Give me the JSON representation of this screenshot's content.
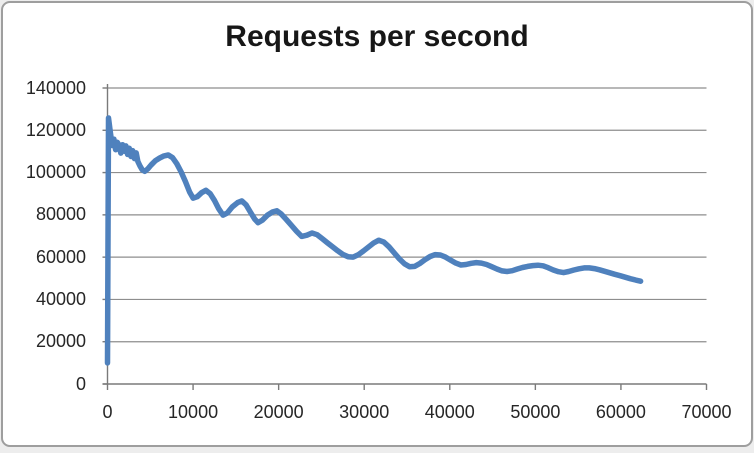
{
  "page": {
    "background": "#ededed",
    "card_background": "#ffffff",
    "card_border_color": "#9e9e9e"
  },
  "chart_data": {
    "type": "line",
    "title": "Requests per second",
    "title_color": "#171717",
    "xlabel": "",
    "ylabel": "",
    "xlim": [
      0,
      70000
    ],
    "ylim": [
      0,
      140000
    ],
    "x_ticks": [
      0,
      10000,
      20000,
      30000,
      40000,
      50000,
      60000,
      70000
    ],
    "x_tick_labels": [
      "0",
      "10000",
      "20000",
      "30000",
      "40000",
      "50000",
      "60000",
      "70000"
    ],
    "y_ticks": [
      0,
      20000,
      40000,
      60000,
      80000,
      100000,
      120000,
      140000
    ],
    "y_tick_labels": [
      "0",
      "20000",
      "40000",
      "60000",
      "80000",
      "100000",
      "120000",
      "140000"
    ],
    "grid": "horizontal-gridlines-at-y-ticks",
    "legend": "none",
    "gridline_color": "#8e8e8e",
    "axis_color": "#7a7a7a",
    "tick_label_color": "#262626",
    "series": [
      {
        "name": "Requests per second",
        "color": "#4f81bd",
        "line_width": 5.5,
        "points": [
          [
            0,
            10000
          ],
          [
            120,
            125800
          ],
          [
            350,
            118500
          ],
          [
            550,
            112800
          ],
          [
            750,
            115800
          ],
          [
            950,
            110800
          ],
          [
            1150,
            114300
          ],
          [
            1350,
            112900
          ],
          [
            1550,
            109200
          ],
          [
            1750,
            113200
          ],
          [
            1950,
            110100
          ],
          [
            2150,
            112600
          ],
          [
            2350,
            108600
          ],
          [
            2550,
            111500
          ],
          [
            2750,
            107600
          ],
          [
            2950,
            110400
          ],
          [
            3150,
            106600
          ],
          [
            3350,
            109300
          ],
          [
            3550,
            105200
          ],
          [
            3800,
            103100
          ],
          [
            4050,
            101300
          ],
          [
            4350,
            100600
          ],
          [
            4700,
            101700
          ],
          [
            5100,
            103600
          ],
          [
            5600,
            105600
          ],
          [
            6100,
            106900
          ],
          [
            6600,
            107900
          ],
          [
            7100,
            108300
          ],
          [
            7600,
            107100
          ],
          [
            8100,
            104200
          ],
          [
            8600,
            100300
          ],
          [
            9100,
            95800
          ],
          [
            9600,
            90800
          ],
          [
            10000,
            87900
          ],
          [
            10500,
            88600
          ],
          [
            11000,
            90500
          ],
          [
            11500,
            91600
          ],
          [
            12000,
            90000
          ],
          [
            12500,
            86800
          ],
          [
            13000,
            82900
          ],
          [
            13500,
            79900
          ],
          [
            14000,
            80900
          ],
          [
            14600,
            83800
          ],
          [
            15200,
            85800
          ],
          [
            15700,
            86600
          ],
          [
            16200,
            84700
          ],
          [
            16700,
            81300
          ],
          [
            17200,
            78000
          ],
          [
            17600,
            76300
          ],
          [
            18100,
            77500
          ],
          [
            18700,
            79900
          ],
          [
            19300,
            81400
          ],
          [
            19800,
            81900
          ],
          [
            20300,
            80400
          ],
          [
            20900,
            77800
          ],
          [
            21500,
            75000
          ],
          [
            22100,
            72200
          ],
          [
            22700,
            69800
          ],
          [
            23300,
            70400
          ],
          [
            23900,
            71400
          ],
          [
            24500,
            70600
          ],
          [
            25100,
            68700
          ],
          [
            25700,
            66800
          ],
          [
            26300,
            64900
          ],
          [
            26900,
            63000
          ],
          [
            27500,
            61300
          ],
          [
            28100,
            60200
          ],
          [
            28700,
            60000
          ],
          [
            29300,
            61100
          ],
          [
            29900,
            62900
          ],
          [
            30500,
            64800
          ],
          [
            31100,
            66700
          ],
          [
            31700,
            68000
          ],
          [
            32300,
            67100
          ],
          [
            32900,
            64900
          ],
          [
            33500,
            62000
          ],
          [
            34100,
            59200
          ],
          [
            34700,
            56900
          ],
          [
            35300,
            55500
          ],
          [
            35900,
            55600
          ],
          [
            36500,
            57000
          ],
          [
            37100,
            58800
          ],
          [
            37700,
            60300
          ],
          [
            38300,
            61200
          ],
          [
            38900,
            61000
          ],
          [
            39500,
            60000
          ],
          [
            40100,
            58600
          ],
          [
            40700,
            57200
          ],
          [
            41300,
            56300
          ],
          [
            41900,
            56500
          ],
          [
            42500,
            57100
          ],
          [
            43100,
            57400
          ],
          [
            43700,
            57200
          ],
          [
            44300,
            56500
          ],
          [
            44900,
            55500
          ],
          [
            45500,
            54400
          ],
          [
            46100,
            53500
          ],
          [
            46700,
            53200
          ],
          [
            47300,
            53600
          ],
          [
            47900,
            54400
          ],
          [
            48500,
            55100
          ],
          [
            49100,
            55600
          ],
          [
            49700,
            56000
          ],
          [
            50300,
            56200
          ],
          [
            50900,
            55900
          ],
          [
            51500,
            55000
          ],
          [
            52100,
            53900
          ],
          [
            52700,
            53100
          ],
          [
            53300,
            52700
          ],
          [
            53900,
            53200
          ],
          [
            54500,
            53900
          ],
          [
            55100,
            54500
          ],
          [
            55700,
            54900
          ],
          [
            56300,
            54900
          ],
          [
            56900,
            54600
          ],
          [
            57500,
            54000
          ],
          [
            58100,
            53300
          ],
          [
            58700,
            52600
          ],
          [
            59300,
            51900
          ],
          [
            59900,
            51200
          ],
          [
            60500,
            50500
          ],
          [
            61100,
            49800
          ],
          [
            61700,
            49200
          ],
          [
            62300,
            48600
          ]
        ]
      }
    ]
  }
}
